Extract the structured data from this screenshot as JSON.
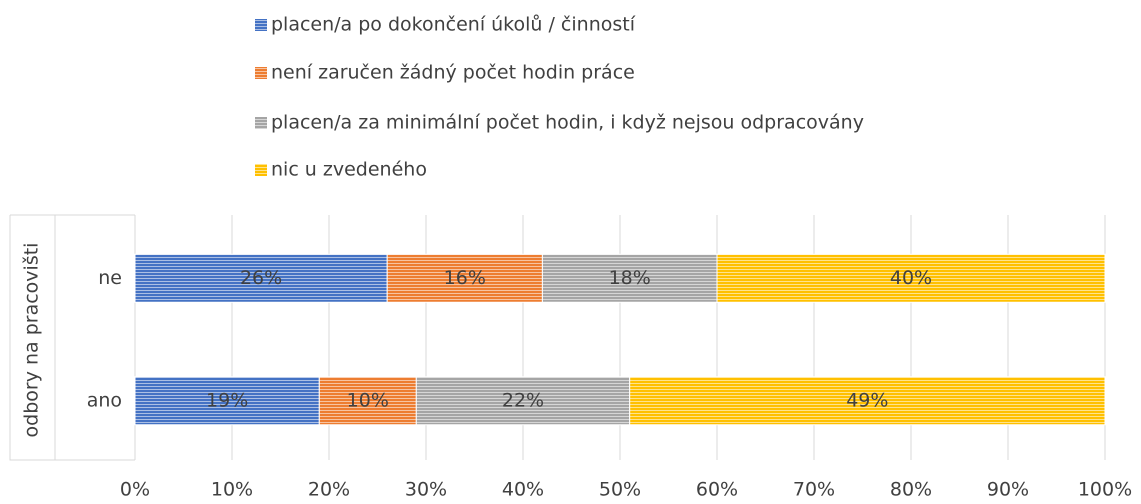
{
  "chart_data": {
    "type": "stacked_barh",
    "y_label": "odbory na pracovišti",
    "categories": [
      "ne",
      "ano"
    ],
    "series": [
      {
        "name": "placen/a po dokončení úkolů / činností",
        "color": "#4472c4",
        "values": [
          26,
          19
        ],
        "value_labels": [
          "26%",
          "19%"
        ]
      },
      {
        "name": "není zaručen žádný počet hodin práce",
        "color": "#ed7d31",
        "values": [
          16,
          10
        ],
        "value_labels": [
          "16%",
          "10%"
        ]
      },
      {
        "name": "placen/a za minimální počet hodin, i když nejsou odpracovány",
        "color": "#a5a5a5",
        "values": [
          18,
          22
        ],
        "value_labels": [
          "18%",
          "22%"
        ]
      },
      {
        "name": "nic u zvedeného",
        "color": "#ffc000",
        "values": [
          40,
          49
        ],
        "value_labels": [
          "40%",
          "49%"
        ]
      }
    ],
    "xlim": [
      0,
      100
    ],
    "xticks": [
      {
        "value": 0,
        "label": "0%"
      },
      {
        "value": 10,
        "label": "10%"
      },
      {
        "value": 20,
        "label": "20%"
      },
      {
        "value": 30,
        "label": "30%"
      },
      {
        "value": 40,
        "label": "40%"
      },
      {
        "value": 50,
        "label": "50%"
      },
      {
        "value": 60,
        "label": "60%"
      },
      {
        "value": 70,
        "label": "70%"
      },
      {
        "value": 80,
        "label": "80%"
      },
      {
        "value": 90,
        "label": "90%"
      },
      {
        "value": 100,
        "label": "100%"
      }
    ],
    "grid": true,
    "legend": "top"
  }
}
